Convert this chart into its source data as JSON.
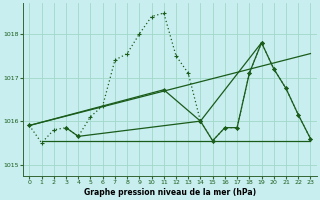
{
  "title": "Graphe pression niveau de la mer (hPa)",
  "background_color": "#c8eef0",
  "grid_color": "#a0d8c8",
  "line_color": "#1a5c1a",
  "xlim": [
    -0.5,
    23.5
  ],
  "ylim": [
    1014.75,
    1018.7
  ],
  "yticks": [
    1015,
    1016,
    1017,
    1018
  ],
  "xticks": [
    0,
    1,
    2,
    3,
    4,
    5,
    6,
    7,
    8,
    9,
    10,
    11,
    12,
    13,
    14,
    15,
    16,
    17,
    18,
    19,
    20,
    21,
    22,
    23
  ],
  "dotted_series": {
    "x": [
      0,
      1,
      2,
      3,
      4,
      5,
      6,
      7,
      8,
      9,
      10,
      11,
      12,
      13,
      14,
      15,
      16,
      17,
      18,
      19,
      20,
      21,
      22,
      23
    ],
    "y": [
      1015.9,
      1015.5,
      1015.8,
      1015.85,
      1015.65,
      1016.1,
      1016.35,
      1017.4,
      1017.55,
      1018.0,
      1018.4,
      1018.48,
      1017.5,
      1017.1,
      1016.0,
      1015.55,
      1015.85,
      1015.85,
      1017.1,
      1017.8,
      1017.2,
      1016.75,
      1016.15,
      1015.6
    ]
  },
  "flat_line": {
    "x": [
      1,
      23
    ],
    "y": [
      1015.55,
      1015.55
    ]
  },
  "line1": {
    "x": [
      0,
      4,
      11,
      15,
      23
    ],
    "y": [
      1015.9,
      1015.65,
      1016.6,
      1016.72,
      1015.6
    ]
  },
  "line2": {
    "x": [
      0,
      4,
      11,
      14,
      19,
      20,
      23
    ],
    "y": [
      1015.9,
      1016.15,
      1016.72,
      1016.0,
      1017.8,
      1017.2,
      1015.6
    ]
  },
  "zigzag": {
    "x": [
      3,
      4,
      14,
      15,
      16,
      17,
      18,
      19,
      20,
      21,
      22,
      23
    ],
    "y": [
      1015.85,
      1015.65,
      1016.0,
      1015.55,
      1015.85,
      1015.85,
      1017.1,
      1017.8,
      1017.2,
      1016.75,
      1016.15,
      1015.6
    ]
  }
}
